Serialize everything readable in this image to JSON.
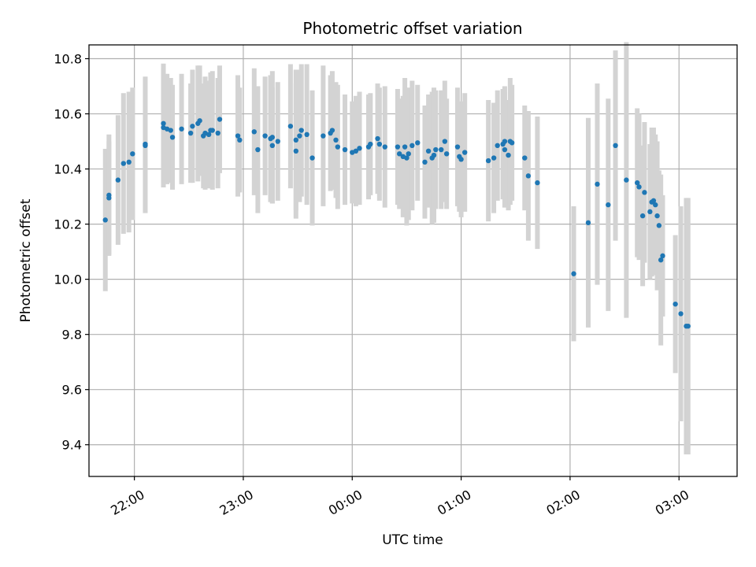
{
  "chart_data": {
    "type": "scatter",
    "title": "Photometric offset variation",
    "xlabel": "UTC time",
    "ylabel": "Photometric offset",
    "grid": true,
    "legend": "none",
    "x_unit": "UTC time (HH:MM, times after midnight belong to the next day)",
    "xlim": [
      "21:35",
      "03:32"
    ],
    "ylim": [
      9.285,
      10.85
    ],
    "x_ticks": [
      "22:00",
      "23:00",
      "00:00",
      "01:00",
      "02:00",
      "03:00"
    ],
    "y_ticks": [
      "9.4",
      "9.6",
      "9.8",
      "10.0",
      "10.2",
      "10.4",
      "10.6",
      "10.8"
    ],
    "colors": {
      "points": "#1f77b4",
      "error_bars": "#d3d3d3",
      "grid": "#b0b0b0"
    },
    "series": [
      {
        "points": [
          {
            "x": "21:44",
            "y": 10.215,
            "err": 0.258
          },
          {
            "x": "21:46",
            "y": 10.295,
            "err": 0.205
          },
          {
            "x": "21:46",
            "y": 10.305,
            "err": 0.22
          },
          {
            "x": "21:51",
            "y": 10.36,
            "err": 0.235
          },
          {
            "x": "21:54",
            "y": 10.42,
            "err": 0.255
          },
          {
            "x": "21:57",
            "y": 10.425,
            "err": 0.255
          },
          {
            "x": "21:59",
            "y": 10.455,
            "err": 0.24
          },
          {
            "x": "22:06",
            "y": 10.49,
            "err": 0.245
          },
          {
            "x": "22:06",
            "y": 10.485,
            "err": 0.245
          },
          {
            "x": "22:16",
            "y": 10.55,
            "err": 0.217
          },
          {
            "x": "22:16",
            "y": 10.565,
            "err": 0.217
          },
          {
            "x": "22:18",
            "y": 10.545,
            "err": 0.2
          },
          {
            "x": "22:20",
            "y": 10.54,
            "err": 0.19
          },
          {
            "x": "22:21",
            "y": 10.515,
            "err": 0.19
          },
          {
            "x": "22:26",
            "y": 10.545,
            "err": 0.2
          },
          {
            "x": "22:31",
            "y": 10.53,
            "err": 0.18
          },
          {
            "x": "22:32",
            "y": 10.555,
            "err": 0.205
          },
          {
            "x": "22:35",
            "y": 10.565,
            "err": 0.21
          },
          {
            "x": "22:36",
            "y": 10.575,
            "err": 0.2
          },
          {
            "x": "22:38",
            "y": 10.52,
            "err": 0.19
          },
          {
            "x": "22:39",
            "y": 10.53,
            "err": 0.205
          },
          {
            "x": "22:41",
            "y": 10.525,
            "err": 0.195
          },
          {
            "x": "22:42",
            "y": 10.54,
            "err": 0.21
          },
          {
            "x": "22:43",
            "y": 10.54,
            "err": 0.215
          },
          {
            "x": "22:46",
            "y": 10.53,
            "err": 0.2
          },
          {
            "x": "22:47",
            "y": 10.58,
            "err": 0.195
          },
          {
            "x": "22:57",
            "y": 10.52,
            "err": 0.22
          },
          {
            "x": "22:58",
            "y": 10.505,
            "err": 0.19
          },
          {
            "x": "23:06",
            "y": 10.535,
            "err": 0.23
          },
          {
            "x": "23:08",
            "y": 10.47,
            "err": 0.23
          },
          {
            "x": "23:12",
            "y": 10.52,
            "err": 0.215
          },
          {
            "x": "23:15",
            "y": 10.51,
            "err": 0.23
          },
          {
            "x": "23:16",
            "y": 10.515,
            "err": 0.24
          },
          {
            "x": "23:16",
            "y": 10.485,
            "err": 0.21
          },
          {
            "x": "23:19",
            "y": 10.5,
            "err": 0.215
          },
          {
            "x": "23:26",
            "y": 10.555,
            "err": 0.225
          },
          {
            "x": "23:29",
            "y": 10.465,
            "err": 0.245
          },
          {
            "x": "23:29",
            "y": 10.505,
            "err": 0.255
          },
          {
            "x": "23:31",
            "y": 10.52,
            "err": 0.24
          },
          {
            "x": "23:32",
            "y": 10.54,
            "err": 0.24
          },
          {
            "x": "23:35",
            "y": 10.525,
            "err": 0.255
          },
          {
            "x": "23:38",
            "y": 10.44,
            "err": 0.245
          },
          {
            "x": "23:44",
            "y": 10.52,
            "err": 0.255
          },
          {
            "x": "23:48",
            "y": 10.53,
            "err": 0.21
          },
          {
            "x": "23:49",
            "y": 10.54,
            "err": 0.215
          },
          {
            "x": "23:51",
            "y": 10.505,
            "err": 0.21
          },
          {
            "x": "23:52",
            "y": 10.48,
            "err": 0.225
          },
          {
            "x": "23:56",
            "y": 10.47,
            "err": 0.2
          },
          {
            "x": "00:00",
            "y": 10.46,
            "err": 0.185
          },
          {
            "x": "00:02",
            "y": 10.465,
            "err": 0.2
          },
          {
            "x": "00:04",
            "y": 10.475,
            "err": 0.205
          },
          {
            "x": "00:09",
            "y": 10.48,
            "err": 0.19
          },
          {
            "x": "00:10",
            "y": 10.49,
            "err": 0.185
          },
          {
            "x": "00:14",
            "y": 10.51,
            "err": 0.2
          },
          {
            "x": "00:15",
            "y": 10.49,
            "err": 0.205
          },
          {
            "x": "00:18",
            "y": 10.48,
            "err": 0.22
          },
          {
            "x": "00:25",
            "y": 10.48,
            "err": 0.21
          },
          {
            "x": "00:26",
            "y": 10.455,
            "err": 0.2
          },
          {
            "x": "00:28",
            "y": 10.445,
            "err": 0.22
          },
          {
            "x": "00:29",
            "y": 10.48,
            "err": 0.25
          },
          {
            "x": "00:30",
            "y": 10.44,
            "err": 0.245
          },
          {
            "x": "00:31",
            "y": 10.455,
            "err": 0.24
          },
          {
            "x": "00:33",
            "y": 10.485,
            "err": 0.235
          },
          {
            "x": "00:36",
            "y": 10.495,
            "err": 0.21
          },
          {
            "x": "00:40",
            "y": 10.425,
            "err": 0.205
          },
          {
            "x": "00:42",
            "y": 10.465,
            "err": 0.205
          },
          {
            "x": "00:44",
            "y": 10.44,
            "err": 0.24
          },
          {
            "x": "00:45",
            "y": 10.45,
            "err": 0.245
          },
          {
            "x": "00:46",
            "y": 10.47,
            "err": 0.215
          },
          {
            "x": "00:49",
            "y": 10.47,
            "err": 0.215
          },
          {
            "x": "00:51",
            "y": 10.5,
            "err": 0.22
          },
          {
            "x": "00:52",
            "y": 10.455,
            "err": 0.2
          },
          {
            "x": "00:58",
            "y": 10.48,
            "err": 0.215
          },
          {
            "x": "00:59",
            "y": 10.445,
            "err": 0.2
          },
          {
            "x": "01:00",
            "y": 10.435,
            "err": 0.21
          },
          {
            "x": "01:02",
            "y": 10.46,
            "err": 0.215
          },
          {
            "x": "01:15",
            "y": 10.43,
            "err": 0.22
          },
          {
            "x": "01:18",
            "y": 10.44,
            "err": 0.2
          },
          {
            "x": "01:20",
            "y": 10.485,
            "err": 0.2
          },
          {
            "x": "01:23",
            "y": 10.49,
            "err": 0.2
          },
          {
            "x": "01:24",
            "y": 10.5,
            "err": 0.2
          },
          {
            "x": "01:24",
            "y": 10.47,
            "err": 0.21
          },
          {
            "x": "01:26",
            "y": 10.45,
            "err": 0.2
          },
          {
            "x": "01:27",
            "y": 10.5,
            "err": 0.23
          },
          {
            "x": "01:28",
            "y": 10.495,
            "err": 0.21
          },
          {
            "x": "01:35",
            "y": 10.44,
            "err": 0.19
          },
          {
            "x": "01:37",
            "y": 10.375,
            "err": 0.235
          },
          {
            "x": "01:42",
            "y": 10.35,
            "err": 0.24
          },
          {
            "x": "02:02",
            "y": 10.02,
            "err": 0.245
          },
          {
            "x": "02:10",
            "y": 10.205,
            "err": 0.38
          },
          {
            "x": "02:15",
            "y": 10.345,
            "err": 0.365
          },
          {
            "x": "02:21",
            "y": 10.27,
            "err": 0.385
          },
          {
            "x": "02:25",
            "y": 10.485,
            "err": 0.345
          },
          {
            "x": "02:31",
            "y": 10.36,
            "err": 0.5
          },
          {
            "x": "02:37",
            "y": 10.35,
            "err": 0.27
          },
          {
            "x": "02:38",
            "y": 10.335,
            "err": 0.265
          },
          {
            "x": "02:40",
            "y": 10.23,
            "err": 0.255
          },
          {
            "x": "02:41",
            "y": 10.315,
            "err": 0.255
          },
          {
            "x": "02:44",
            "y": 10.245,
            "err": 0.245
          },
          {
            "x": "02:45",
            "y": 10.28,
            "err": 0.27
          },
          {
            "x": "02:46",
            "y": 10.285,
            "err": 0.265
          },
          {
            "x": "02:47",
            "y": 10.27,
            "err": 0.255
          },
          {
            "x": "02:48",
            "y": 10.23,
            "err": 0.27
          },
          {
            "x": "02:49",
            "y": 10.195,
            "err": 0.2
          },
          {
            "x": "02:50",
            "y": 10.07,
            "err": 0.31
          },
          {
            "x": "02:51",
            "y": 10.085,
            "err": 0.22
          },
          {
            "x": "02:58",
            "y": 9.91,
            "err": 0.25
          },
          {
            "x": "03:01",
            "y": 9.875,
            "err": 0.39
          },
          {
            "x": "03:04",
            "y": 9.83,
            "err": 0.465
          },
          {
            "x": "03:05",
            "y": 9.83,
            "err": 0.465
          }
        ]
      }
    ]
  }
}
